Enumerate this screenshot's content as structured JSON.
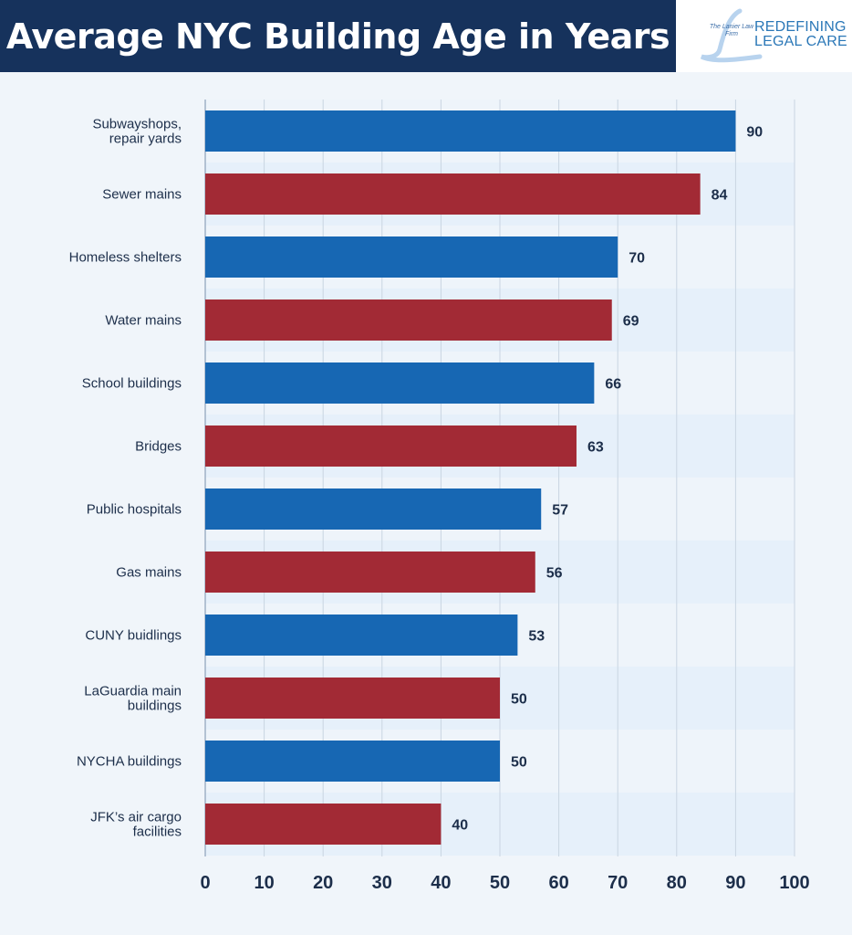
{
  "header": {
    "title": "Average NYC Building Age in Years"
  },
  "logo": {
    "firm_name": "The Lanier Law Firm",
    "tagline_line1": "REDEFINING",
    "tagline_line2": "LEGAL CARE"
  },
  "colors": {
    "header_bg": "#16325c",
    "blue_bar": "#1767b3",
    "red_bar": "#a22a35",
    "label_text": "#1c2e4a"
  },
  "chart_data": {
    "type": "bar",
    "orientation": "horizontal",
    "title": "Average NYC Building Age in Years",
    "xlabel": "",
    "ylabel": "",
    "xlim": [
      0,
      100
    ],
    "xticks": [
      0,
      10,
      20,
      30,
      40,
      50,
      60,
      70,
      80,
      90,
      100
    ],
    "grid": true,
    "categories": [
      "Subwayshops, repair yards",
      "Sewer mains",
      "Homeless shelters",
      "Water mains",
      "School buildings",
      "Bridges",
      "Public hospitals",
      "Gas mains",
      "CUNY buidlings",
      "LaGuardia main buildings",
      "NYCHA buildings",
      "JFK’s air cargo facilities"
    ],
    "category_lines": [
      [
        "Subwayshops,",
        "repair yards"
      ],
      [
        "Sewer mains"
      ],
      [
        "Homeless shelters"
      ],
      [
        "Water mains"
      ],
      [
        "School buildings"
      ],
      [
        "Bridges"
      ],
      [
        "Public hospitals"
      ],
      [
        "Gas mains"
      ],
      [
        "CUNY buidlings"
      ],
      [
        "LaGuardia main",
        "buildings"
      ],
      [
        "NYCHA buildings"
      ],
      [
        "JFK’s air cargo",
        "facilities"
      ]
    ],
    "values": [
      90,
      84,
      70,
      69,
      66,
      63,
      57,
      56,
      53,
      50,
      50,
      40
    ],
    "bar_colors": [
      "blue",
      "red",
      "blue",
      "red",
      "blue",
      "red",
      "blue",
      "red",
      "blue",
      "red",
      "blue",
      "red"
    ]
  }
}
